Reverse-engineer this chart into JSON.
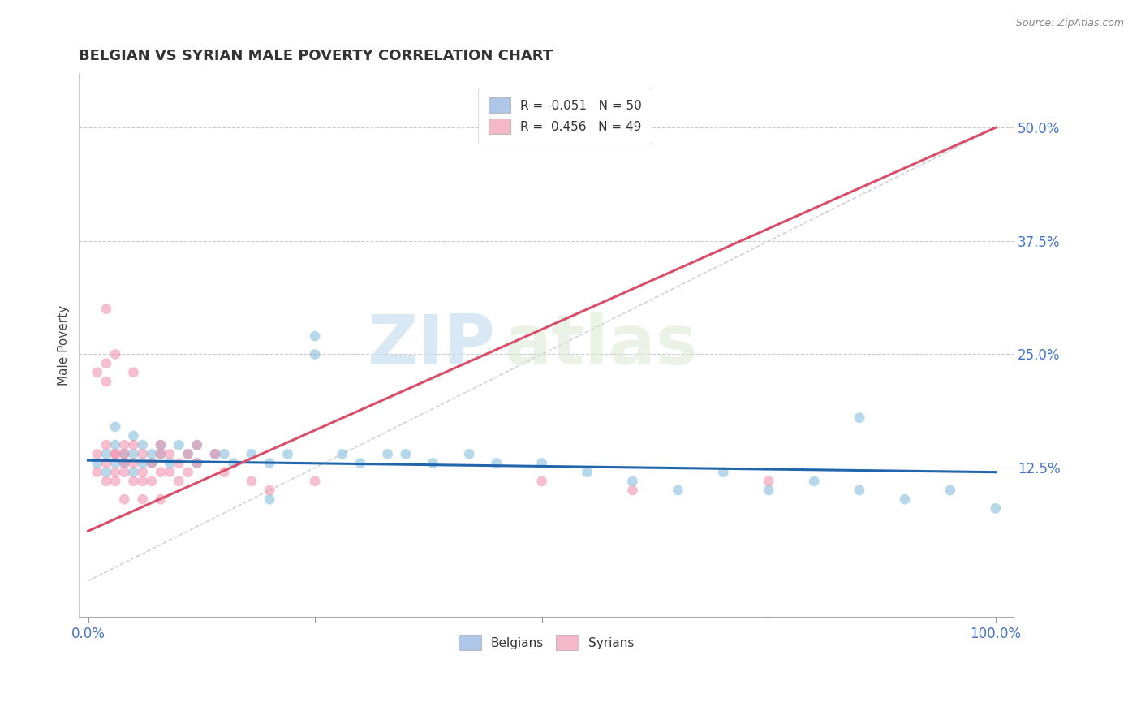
{
  "title": "BELGIAN VS SYRIAN MALE POVERTY CORRELATION CHART",
  "source": "Source: ZipAtlas.com",
  "xlabel_ticks_left": "0.0%",
  "xlabel_ticks_right": "100.0%",
  "xlabel_tick_vals": [
    0.0,
    0.25,
    0.5,
    0.75,
    1.0
  ],
  "ylabel": "Male Poverty",
  "ylabel_ticks": [
    "12.5%",
    "25.0%",
    "37.5%",
    "50.0%"
  ],
  "ylabel_tick_vals": [
    0.125,
    0.25,
    0.375,
    0.5
  ],
  "xlim": [
    -0.01,
    1.02
  ],
  "ylim": [
    -0.04,
    0.56
  ],
  "legend_entries": [
    {
      "label": "R = -0.051   N = 50",
      "color": "#aec6e8"
    },
    {
      "label": "R =  0.456   N = 49",
      "color": "#f4b8c8"
    }
  ],
  "scatter_blue": {
    "color": "#7ab8d9",
    "alpha": 0.55,
    "size": 85,
    "x": [
      0.01,
      0.02,
      0.02,
      0.03,
      0.03,
      0.04,
      0.04,
      0.05,
      0.05,
      0.06,
      0.06,
      0.07,
      0.07,
      0.08,
      0.09,
      0.1,
      0.11,
      0.12,
      0.14,
      0.15,
      0.16,
      0.18,
      0.2,
      0.22,
      0.25,
      0.25,
      0.28,
      0.3,
      0.33,
      0.35,
      0.38,
      0.42,
      0.45,
      0.5,
      0.55,
      0.6,
      0.65,
      0.7,
      0.75,
      0.8,
      0.85,
      0.9,
      0.95,
      1.0,
      0.03,
      0.05,
      0.08,
      0.12,
      0.2,
      0.85
    ],
    "y": [
      0.13,
      0.14,
      0.12,
      0.13,
      0.15,
      0.14,
      0.13,
      0.12,
      0.14,
      0.13,
      0.15,
      0.14,
      0.13,
      0.14,
      0.13,
      0.15,
      0.14,
      0.13,
      0.14,
      0.14,
      0.13,
      0.14,
      0.13,
      0.14,
      0.25,
      0.27,
      0.14,
      0.13,
      0.14,
      0.14,
      0.13,
      0.14,
      0.13,
      0.13,
      0.12,
      0.11,
      0.1,
      0.12,
      0.1,
      0.11,
      0.1,
      0.09,
      0.1,
      0.08,
      0.17,
      0.16,
      0.15,
      0.15,
      0.09,
      0.18
    ]
  },
  "scatter_pink": {
    "color": "#f08caa",
    "alpha": 0.55,
    "size": 85,
    "x": [
      0.01,
      0.01,
      0.02,
      0.02,
      0.02,
      0.03,
      0.03,
      0.03,
      0.04,
      0.04,
      0.04,
      0.05,
      0.05,
      0.05,
      0.06,
      0.06,
      0.07,
      0.07,
      0.08,
      0.08,
      0.09,
      0.09,
      0.1,
      0.1,
      0.11,
      0.11,
      0.12,
      0.12,
      0.14,
      0.15,
      0.01,
      0.02,
      0.02,
      0.03,
      0.04,
      0.05,
      0.06,
      0.08,
      0.2,
      0.25,
      0.02,
      0.03,
      0.04,
      0.06,
      0.08,
      0.18,
      0.5,
      0.6,
      0.75
    ],
    "y": [
      0.12,
      0.14,
      0.13,
      0.11,
      0.15,
      0.12,
      0.14,
      0.11,
      0.13,
      0.12,
      0.14,
      0.11,
      0.15,
      0.13,
      0.12,
      0.14,
      0.13,
      0.11,
      0.12,
      0.15,
      0.14,
      0.12,
      0.13,
      0.11,
      0.14,
      0.12,
      0.13,
      0.15,
      0.14,
      0.12,
      0.23,
      0.22,
      0.24,
      0.14,
      0.15,
      0.23,
      0.11,
      0.14,
      0.1,
      0.11,
      0.3,
      0.25,
      0.09,
      0.09,
      0.09,
      0.11,
      0.11,
      0.1,
      0.11
    ]
  },
  "trendline_blue": {
    "x": [
      0.0,
      1.0
    ],
    "y": [
      0.133,
      0.12
    ],
    "color": "#2166ac",
    "linewidth": 2.2
  },
  "trendline_pink": {
    "x": [
      0.0,
      1.0
    ],
    "y": [
      0.055,
      0.5
    ],
    "color": "#d94f6a",
    "linewidth": 2.2
  },
  "diagonal_line": {
    "x": [
      0.0,
      1.0
    ],
    "y": [
      0.0,
      0.5
    ],
    "color": "#cccccc",
    "linewidth": 1.0,
    "linestyle": "--"
  },
  "grid_yticks": [
    0.125,
    0.25,
    0.375,
    0.5
  ],
  "grid_color": "#cccccc",
  "grid_linestyle": "--",
  "watermark_zip": "ZIP",
  "watermark_atlas": "atlas",
  "background_color": "#ffffff",
  "title_fontsize": 13,
  "axis_label_fontsize": 11,
  "tick_fontsize": 12,
  "tick_color": "#4472c4"
}
